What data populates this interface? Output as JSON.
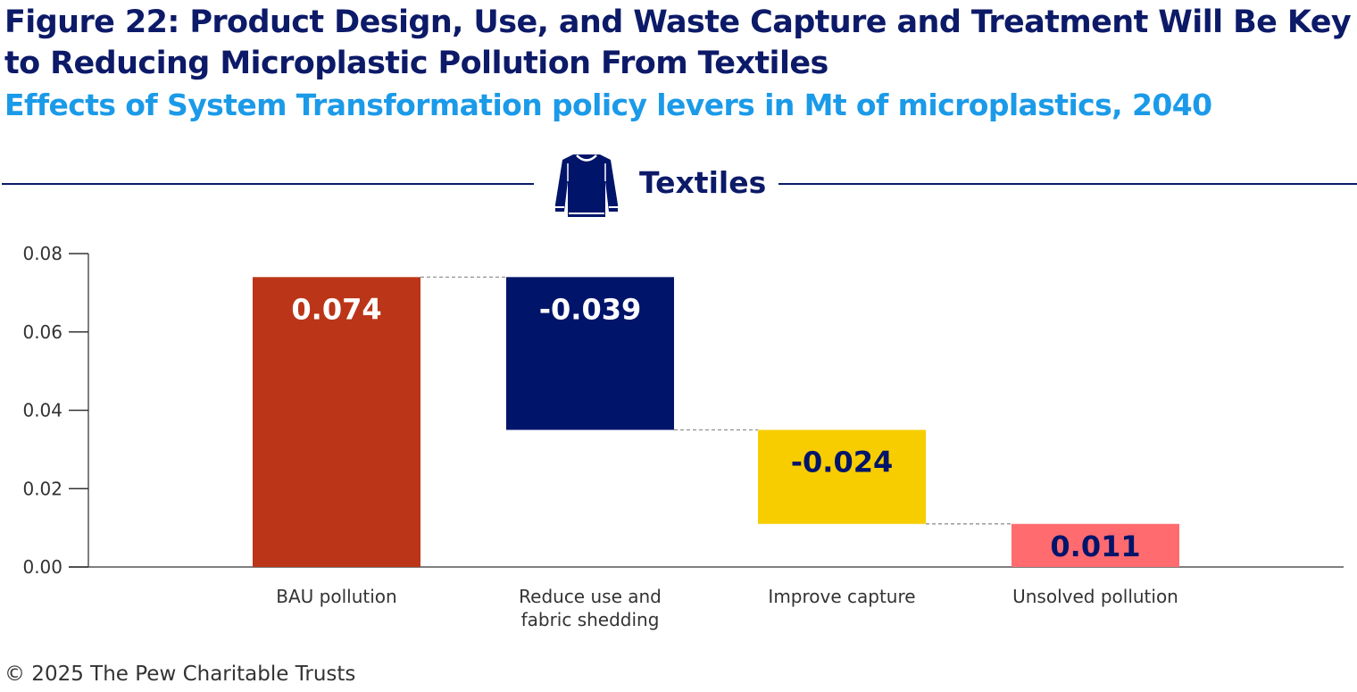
{
  "title": "Figure 22: Product Design, Use, and Waste Capture and Treatment Will Be Key to Reducing Microplastic Pollution From Textiles",
  "subtitle": "Effects of System Transformation policy levers in Mt of microplastics, 2040",
  "section": {
    "label": "Textiles",
    "icon": "sweater-icon"
  },
  "credit": "© 2025 The Pew Charitable Trusts",
  "chart_data": {
    "type": "waterfall",
    "categories": [
      [
        "BAU pollution"
      ],
      [
        "Reduce use and",
        "fabric shedding"
      ],
      [
        "Improve capture"
      ],
      [
        "Unsolved pollution"
      ]
    ],
    "values": [
      0.074,
      -0.039,
      -0.024,
      0.011
    ],
    "labels": [
      "0.074",
      "-0.039",
      "-0.024",
      "0.011"
    ],
    "kinds": [
      "total",
      "delta",
      "delta",
      "total"
    ],
    "colors": [
      "#bb3518",
      "#00146a",
      "#f7cd00",
      "#ff6b6f"
    ],
    "label_colors": [
      "#ffffff",
      "#ffffff",
      "#00146a",
      "#00146a"
    ],
    "ylim": [
      0,
      0.08
    ],
    "yticks": [
      "0.00",
      "0.02",
      "0.04",
      "0.06",
      "0.08"
    ],
    "grid": false,
    "connectors": true
  }
}
